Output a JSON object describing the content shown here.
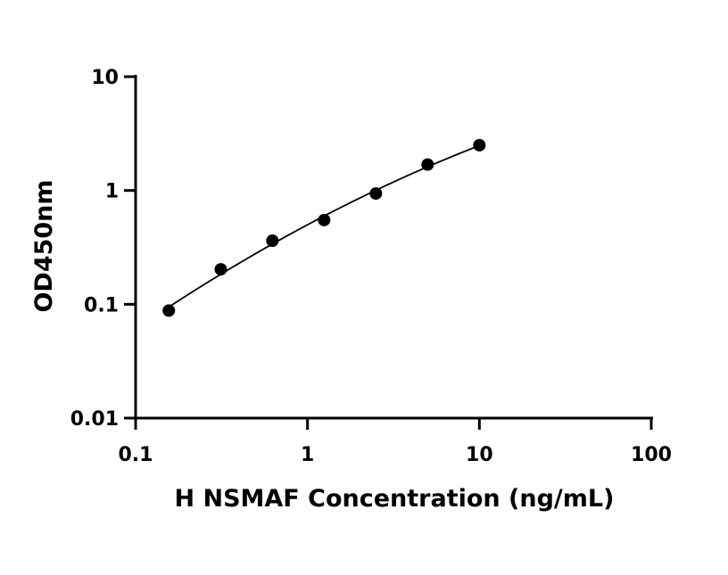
{
  "chart_data": {
    "type": "scatter",
    "xlabel": "H NSMAF Concentration (ng/mL)",
    "ylabel": "OD450nm",
    "x_scale": "log",
    "y_scale": "log",
    "xlim": [
      0.1,
      100
    ],
    "ylim": [
      0.01,
      10
    ],
    "x_ticks": [
      "0.1",
      "1",
      "10",
      "100"
    ],
    "y_ticks": [
      "0.01",
      "0.1",
      "1",
      "10"
    ],
    "grid": false,
    "series": [
      {
        "x": [
          0.156,
          0.313,
          0.625,
          1.25,
          2.5,
          5,
          10
        ],
        "y": [
          0.088,
          0.203,
          0.362,
          0.55,
          0.94,
          1.69,
          2.5
        ],
        "fit_curve": true
      }
    ]
  }
}
